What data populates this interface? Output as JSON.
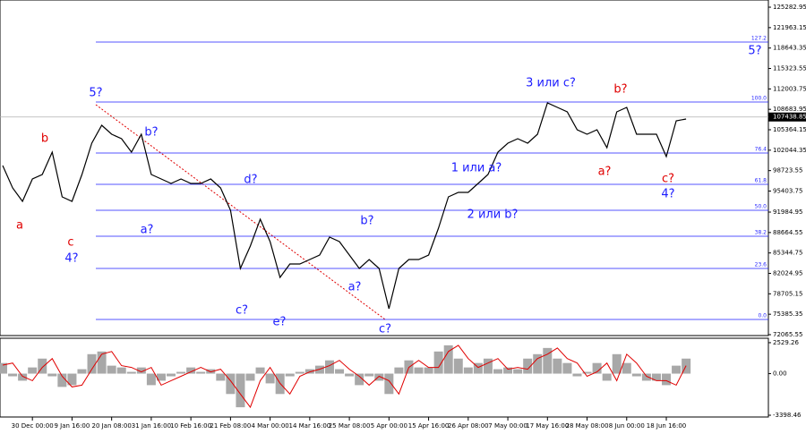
{
  "chart_data": [
    {
      "type": "line",
      "categories": [
        null,
        null,
        null,
        "30 Dec 00:00",
        null,
        null,
        null,
        "9 Jan 16:00",
        null,
        null,
        null,
        "20 Jan 08:00",
        null,
        null,
        null,
        "31 Jan 16:00",
        null,
        null,
        null,
        "10 Feb 16:00",
        null,
        null,
        null,
        "21 Feb 08:00",
        null,
        null,
        null,
        "4 Mar 00:00",
        null,
        null,
        null,
        "14 Mar 16:00",
        null,
        null,
        null,
        "25 Mar 08:00",
        null,
        null,
        null,
        "5 Apr 00:00",
        null,
        null,
        null,
        "15 Apr 16:00",
        null,
        null,
        null,
        "26 Apr 08:00",
        null,
        null,
        null,
        "7 May 00:00",
        null,
        null,
        null,
        "17 May 16:00",
        null,
        null,
        null,
        "28 May 08:00",
        null,
        null,
        null,
        "8 Jun 00:00",
        null,
        null,
        null,
        "18 Jun 16:00",
        null,
        null
      ],
      "values": [
        99551,
        95916,
        93735,
        97370,
        98097,
        101732,
        94462,
        93735,
        98097,
        103186,
        106094,
        104640,
        103913,
        101732,
        104640,
        98097,
        97370,
        96643,
        97370,
        96643,
        96643,
        97370,
        95916,
        92281,
        82830,
        86465,
        90827,
        87192,
        81376,
        83557,
        83557,
        84284,
        85011,
        87919,
        87192,
        85011,
        82830,
        84284,
        82830,
        76287,
        82830,
        84284,
        84284,
        85011,
        89373,
        94462,
        95189,
        95189,
        96643,
        98097,
        101732,
        103186,
        103913,
        103186,
        104640,
        109729,
        109002,
        108275,
        105367,
        104640,
        105367,
        102459,
        108275,
        109002,
        104640,
        104640,
        104640,
        101005,
        106821,
        107111
      ],
      "color": "#000000",
      "ylim": [
        71920,
        126450
      ],
      "yticks": [
        125282.95,
        121963.15,
        118643.35,
        115323.55,
        112003.75,
        108683.95,
        105364.15,
        102044.35,
        98723.55,
        95403.75,
        91984.95,
        88664.55,
        85344.75,
        82024.95,
        78705.15,
        75385.35,
        72065.55
      ],
      "current_price": 107438.85,
      "levels": [
        {
          "label": "127.2",
          "value": 119616
        },
        {
          "label": "100.0",
          "value": 109874
        },
        {
          "label": "76.4",
          "value": 101587
        },
        {
          "label": "61.8",
          "value": 96497
        },
        {
          "label": "50.0",
          "value": 92281
        },
        {
          "label": "38.2",
          "value": 88064
        },
        {
          "label": "23.6",
          "value": 82830
        },
        {
          "label": "0.0",
          "value": 74542
        }
      ],
      "annotations": [
        "5?",
        "b",
        "a",
        "c",
        "4?",
        "b?",
        "a?",
        "d?",
        "c?",
        "e?",
        "b?",
        "a?",
        "c?",
        "1 или a?",
        "2 или b?",
        "3 или c?",
        "b?",
        "a?",
        "c?",
        "4?",
        "5?"
      ]
    },
    {
      "type": "oscillator",
      "values": [
        868,
        -217,
        -578,
        506,
        1229,
        -217,
        -1085,
        -940,
        362,
        1591,
        1808,
        651,
        506,
        145,
        506,
        -940,
        -578,
        -217,
        145,
        506,
        145,
        362,
        -578,
        -1663,
        -2747,
        -578,
        506,
        -795,
        -1663,
        -217,
        145,
        362,
        651,
        1085,
        362,
        -217,
        -940,
        -217,
        -578,
        -1663,
        506,
        1085,
        506,
        506,
        1808,
        2314,
        1229,
        506,
        868,
        1229,
        362,
        506,
        362,
        1229,
        1591,
        2097,
        1229,
        868,
        -217,
        145,
        868,
        -578,
        1591,
        868,
        -217,
        -578,
        -578,
        -940,
        651,
        1229
      ],
      "signal_values": [
        700,
        868,
        -217,
        -578,
        506,
        1229,
        -217,
        -1085,
        -940,
        362,
        1591,
        1808,
        651,
        506,
        145,
        506,
        -940,
        -578,
        -217,
        145,
        506,
        145,
        362,
        -578,
        -1663,
        -2747,
        -578,
        506,
        -795,
        -1663,
        -217,
        145,
        362,
        651,
        1085,
        362,
        -217,
        -940,
        -217,
        -578,
        -1663,
        506,
        1085,
        506,
        506,
        1808,
        2314,
        1229,
        506,
        868,
        1229,
        362,
        506,
        362,
        1229,
        1591,
        2097,
        1229,
        868,
        -217,
        145,
        868,
        -578,
        1591,
        868,
        -217,
        -578,
        -578,
        -940,
        651
      ],
      "color": "#a8a8a8",
      "signal_color": "#e00000",
      "ylim": [
        -3543,
        2891
      ],
      "yticks": [
        2529.26,
        {
          "value": 0,
          "label": "0.00"
        },
        -3398.46
      ]
    }
  ]
}
